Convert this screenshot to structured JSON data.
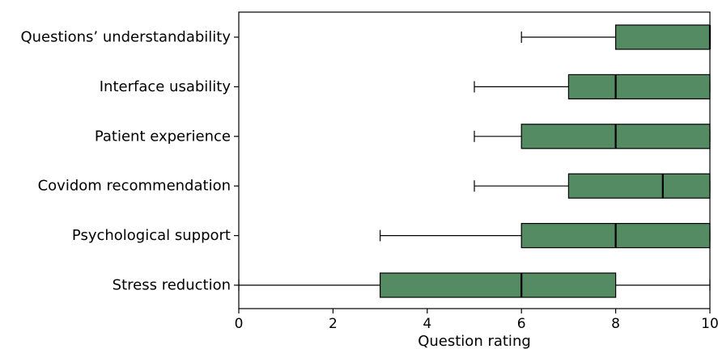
{
  "chart_data": {
    "type": "boxplot",
    "orientation": "horizontal",
    "xlabel": "Question rating",
    "xlim": [
      0,
      10
    ],
    "xticks": [
      0,
      2,
      4,
      6,
      8,
      10
    ],
    "grid": false,
    "box_color": "#548b63",
    "categories": [
      "Questions’ understandability",
      "Interface usability",
      "Patient experience",
      "Covidom recommendation",
      "Psychological support",
      "Stress reduction"
    ],
    "boxes": [
      {
        "whisker_low": 6,
        "q1": 8,
        "median": 10,
        "q3": 10,
        "whisker_high": 10
      },
      {
        "whisker_low": 5,
        "q1": 7,
        "median": 8,
        "q3": 10,
        "whisker_high": 10
      },
      {
        "whisker_low": 5,
        "q1": 6,
        "median": 8,
        "q3": 10,
        "whisker_high": 10
      },
      {
        "whisker_low": 5,
        "q1": 7,
        "median": 9,
        "q3": 10,
        "whisker_high": 10
      },
      {
        "whisker_low": 3,
        "q1": 6,
        "median": 8,
        "q3": 10,
        "whisker_high": 10
      },
      {
        "whisker_low": 0,
        "q1": 3,
        "median": 6,
        "q3": 8,
        "whisker_high": 10
      }
    ]
  }
}
